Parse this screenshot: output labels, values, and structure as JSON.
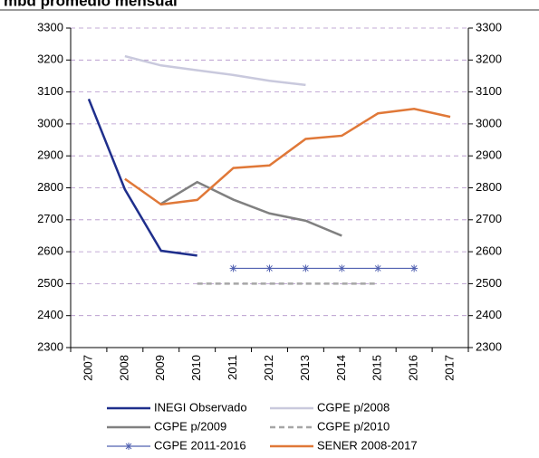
{
  "chart_data": {
    "type": "line",
    "title": "mbd promedio mensual",
    "categories": [
      "2007",
      "2008",
      "2009",
      "2010",
      "2011",
      "2012",
      "2013",
      "2014",
      "2015",
      "2016",
      "2017"
    ],
    "ylim": [
      2300,
      3300
    ],
    "yticks": [
      2300,
      2400,
      2500,
      2600,
      2700,
      2800,
      2900,
      3000,
      3100,
      3200,
      3300
    ],
    "y2lim": [
      2300,
      3300
    ],
    "y2ticks": [
      2300,
      2400,
      2500,
      2600,
      2700,
      2800,
      2900,
      3000,
      3100,
      3200,
      3300
    ],
    "grid": true,
    "series": [
      {
        "name": "INEGI Observado",
        "color": "#1f2f8c",
        "values": [
          3078,
          2795,
          2603,
          2588,
          null,
          null,
          null,
          null,
          null,
          null,
          null
        ]
      },
      {
        "name": "CGPE p/2008",
        "color": "#c9c9dd",
        "values": [
          null,
          3212,
          3183,
          3168,
          3153,
          3135,
          3122,
          null,
          null,
          null,
          null
        ]
      },
      {
        "name": "CGPE p/2009",
        "color": "#808080",
        "values": [
          null,
          null,
          2750,
          2818,
          2763,
          2720,
          2697,
          2650,
          null,
          null,
          null
        ]
      },
      {
        "name": "CGPE p/2010",
        "color": "#a6a6a6",
        "dashed": true,
        "values": [
          null,
          null,
          null,
          2500,
          2500,
          2500,
          2500,
          2500,
          2500,
          null,
          null
        ]
      },
      {
        "name": "CGPE 2011-2016",
        "color": "#5060b0",
        "marker": "asterisk",
        "values": [
          null,
          null,
          null,
          null,
          2548,
          2548,
          2548,
          2548,
          2548,
          2548,
          null
        ]
      },
      {
        "name": "SENER 2008-2017",
        "color": "#e07838",
        "values": [
          null,
          2828,
          2748,
          2762,
          2862,
          2870,
          2953,
          2963,
          3033,
          3047,
          3022
        ]
      }
    ]
  }
}
